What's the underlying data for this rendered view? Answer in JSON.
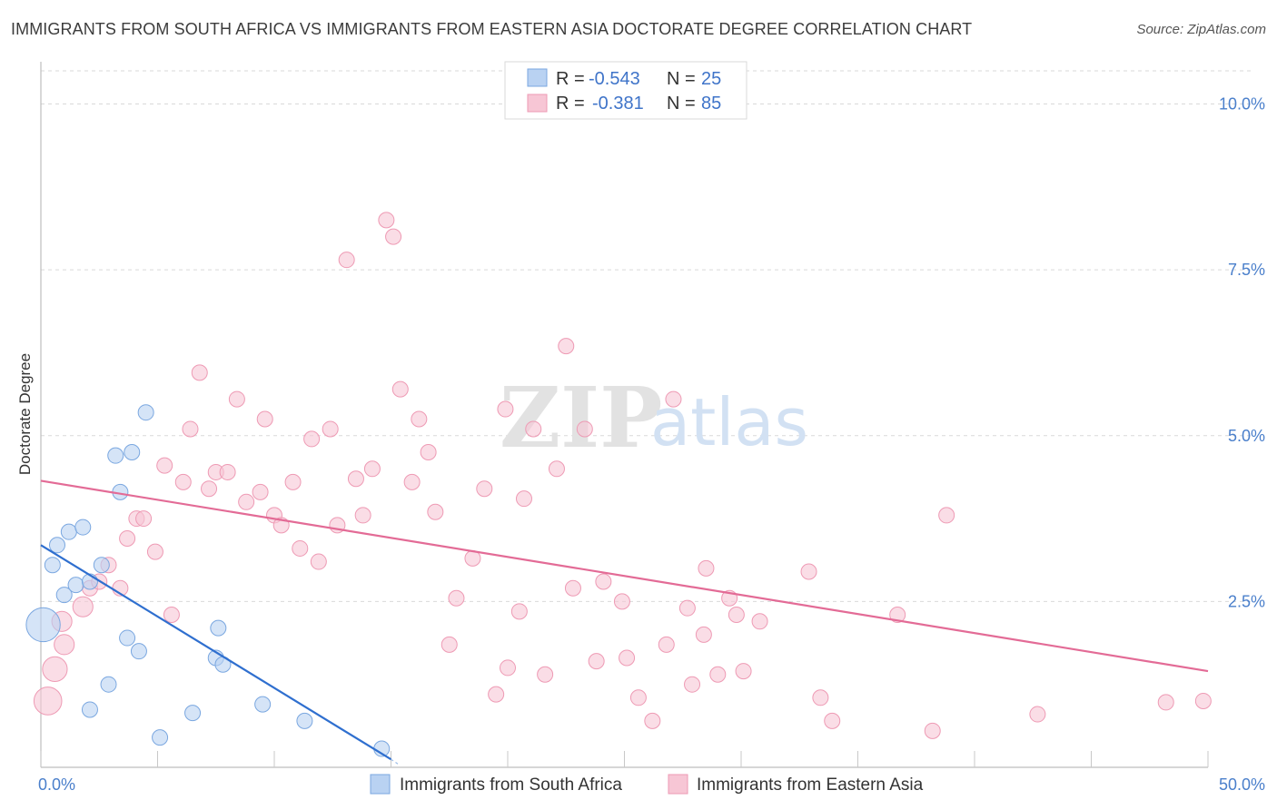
{
  "title": "IMMIGRANTS FROM SOUTH AFRICA VS IMMIGRANTS FROM EASTERN ASIA DOCTORATE DEGREE CORRELATION CHART",
  "source": "Source: ZipAtlas.com",
  "watermark": {
    "zip": "ZIP",
    "atlas": "atlas"
  },
  "legend": {
    "rows": [
      {
        "r_label": "R =",
        "r_value": "-0.543",
        "n_label": "N =",
        "n_value": "25"
      },
      {
        "r_label": "R =",
        "r_value": "-0.381",
        "n_label": "N =",
        "n_value": "85"
      }
    ]
  },
  "bottom_legend": [
    "Immigrants from South Africa",
    "Immigrants from Eastern Asia"
  ],
  "colors": {
    "blue_fill": "#b9d2f2",
    "blue_stroke": "#7aa7e0",
    "blue_line": "#2f6fcf",
    "pink_fill": "#f7c6d5",
    "pink_stroke": "#ee9ab4",
    "pink_line": "#e36b96",
    "tick_label": "#4a7fcb",
    "grid": "#d9d9d9"
  },
  "chart_data": {
    "type": "scatter",
    "title": "IMMIGRANTS FROM SOUTH AFRICA VS IMMIGRANTS FROM EASTERN ASIA DOCTORATE DEGREE CORRELATION CHART",
    "xlabel": "",
    "ylabel": "Doctorate Degree",
    "xlim": [
      0,
      50
    ],
    "ylim": [
      0,
      10.5
    ],
    "x_tick_labels": [
      "0.0%",
      "50.0%"
    ],
    "y_ticks": [
      2.5,
      5.0,
      7.5,
      10.0
    ],
    "y_tick_labels": [
      "2.5%",
      "5.0%",
      "7.5%",
      "10.0%"
    ],
    "series": [
      {
        "name": "Immigrants from South Africa",
        "color": "blue",
        "R": -0.543,
        "N": 25,
        "trend": [
          [
            0,
            3.35
          ],
          [
            15,
            0.12
          ]
        ],
        "trend_ext": [
          [
            15,
            0.12
          ],
          [
            15.3,
            0.05
          ]
        ],
        "points": [
          [
            0.1,
            2.15,
            2.2
          ],
          [
            0.5,
            3.05,
            1
          ],
          [
            0.7,
            3.35,
            1
          ],
          [
            1.0,
            2.6,
            1
          ],
          [
            1.2,
            3.55,
            1
          ],
          [
            1.5,
            2.75,
            1
          ],
          [
            1.8,
            3.62,
            1
          ],
          [
            2.1,
            0.87,
            1
          ],
          [
            2.1,
            2.8,
            1
          ],
          [
            2.6,
            3.05,
            1
          ],
          [
            2.9,
            1.25,
            1
          ],
          [
            3.2,
            4.7,
            1
          ],
          [
            3.4,
            4.15,
            1
          ],
          [
            3.7,
            1.95,
            1
          ],
          [
            3.9,
            4.75,
            1
          ],
          [
            4.2,
            1.75,
            1
          ],
          [
            4.5,
            5.35,
            1
          ],
          [
            5.1,
            0.45,
            1
          ],
          [
            6.5,
            0.82,
            1
          ],
          [
            7.5,
            1.65,
            1
          ],
          [
            7.6,
            2.1,
            1
          ],
          [
            7.8,
            1.55,
            1
          ],
          [
            9.5,
            0.95,
            1
          ],
          [
            11.3,
            0.7,
            1
          ],
          [
            14.6,
            0.28,
            1
          ]
        ]
      },
      {
        "name": "Immigrants from Eastern Asia",
        "color": "pink",
        "R": -0.381,
        "N": 85,
        "trend": [
          [
            0,
            4.32
          ],
          [
            50,
            1.45
          ]
        ],
        "points": [
          [
            0.3,
            1.0,
            1.8
          ],
          [
            0.6,
            1.48,
            1.6
          ],
          [
            0.9,
            2.2,
            1.3
          ],
          [
            1.0,
            1.85,
            1.3
          ],
          [
            1.8,
            2.42,
            1.3
          ],
          [
            2.1,
            2.7,
            1
          ],
          [
            2.5,
            2.8,
            1
          ],
          [
            2.9,
            3.05,
            1
          ],
          [
            3.4,
            2.7,
            1
          ],
          [
            3.7,
            3.45,
            1
          ],
          [
            4.1,
            3.75,
            1
          ],
          [
            4.4,
            3.75,
            1
          ],
          [
            4.9,
            3.25,
            1
          ],
          [
            5.3,
            4.55,
            1
          ],
          [
            5.6,
            2.3,
            1
          ],
          [
            6.1,
            4.3,
            1
          ],
          [
            6.4,
            5.1,
            1
          ],
          [
            6.8,
            5.95,
            1
          ],
          [
            7.2,
            4.2,
            1
          ],
          [
            7.5,
            4.45,
            1
          ],
          [
            8.0,
            4.45,
            1
          ],
          [
            8.4,
            5.55,
            1
          ],
          [
            8.8,
            4.0,
            1
          ],
          [
            9.4,
            4.15,
            1
          ],
          [
            9.6,
            5.25,
            1
          ],
          [
            10.0,
            3.8,
            1
          ],
          [
            10.3,
            3.65,
            1
          ],
          [
            10.8,
            4.3,
            1
          ],
          [
            11.1,
            3.3,
            1
          ],
          [
            11.6,
            4.95,
            1
          ],
          [
            11.9,
            3.1,
            1
          ],
          [
            12.4,
            5.1,
            1
          ],
          [
            12.7,
            3.65,
            1
          ],
          [
            13.1,
            7.65,
            1
          ],
          [
            13.5,
            4.35,
            1
          ],
          [
            13.8,
            3.8,
            1
          ],
          [
            14.2,
            4.5,
            1
          ],
          [
            14.8,
            8.25,
            1
          ],
          [
            15.1,
            8.0,
            1
          ],
          [
            15.4,
            5.7,
            1
          ],
          [
            15.9,
            4.3,
            1
          ],
          [
            16.2,
            5.25,
            1
          ],
          [
            16.6,
            4.75,
            1
          ],
          [
            16.9,
            3.85,
            1
          ],
          [
            17.5,
            1.85,
            1
          ],
          [
            17.8,
            2.55,
            1
          ],
          [
            18.5,
            3.15,
            1
          ],
          [
            19.0,
            4.2,
            1
          ],
          [
            19.5,
            1.1,
            1
          ],
          [
            19.9,
            5.4,
            1
          ],
          [
            20.0,
            1.5,
            1
          ],
          [
            20.5,
            2.35,
            1
          ],
          [
            20.7,
            4.05,
            1
          ],
          [
            21.1,
            5.1,
            1
          ],
          [
            21.6,
            1.4,
            1
          ],
          [
            22.1,
            4.5,
            1
          ],
          [
            22.5,
            6.35,
            1
          ],
          [
            22.8,
            2.7,
            1
          ],
          [
            23.3,
            5.1,
            1
          ],
          [
            23.8,
            1.6,
            1
          ],
          [
            24.1,
            2.8,
            1
          ],
          [
            24.9,
            2.5,
            1
          ],
          [
            25.1,
            1.65,
            1
          ],
          [
            25.6,
            1.05,
            1
          ],
          [
            26.2,
            0.7,
            1
          ],
          [
            26.8,
            1.85,
            1
          ],
          [
            27.1,
            5.55,
            1
          ],
          [
            27.7,
            2.4,
            1
          ],
          [
            27.9,
            1.25,
            1
          ],
          [
            28.4,
            2.0,
            1
          ],
          [
            28.5,
            3.0,
            1
          ],
          [
            29.0,
            1.4,
            1
          ],
          [
            29.5,
            2.55,
            1
          ],
          [
            29.8,
            2.3,
            1
          ],
          [
            30.1,
            1.45,
            1
          ],
          [
            30.8,
            2.2,
            1
          ],
          [
            32.9,
            2.95,
            1
          ],
          [
            33.4,
            1.05,
            1
          ],
          [
            33.9,
            0.7,
            1
          ],
          [
            36.7,
            2.3,
            1
          ],
          [
            38.2,
            0.55,
            1
          ],
          [
            38.8,
            3.8,
            1
          ],
          [
            42.7,
            0.8,
            1
          ],
          [
            48.2,
            0.98,
            1
          ],
          [
            49.8,
            1.0,
            1
          ]
        ]
      }
    ]
  }
}
